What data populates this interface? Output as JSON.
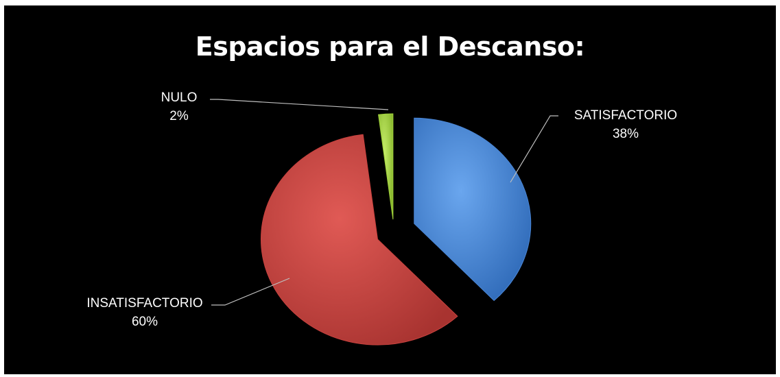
{
  "chart_data": {
    "type": "pie",
    "title": "Espacios para el Descanso:",
    "slices": [
      {
        "label": "SATISFACTORIO",
        "percent_label": "38%",
        "value": 38,
        "color": "#4a86d6"
      },
      {
        "label": "INSATISFACTORIO",
        "percent_label": "60%",
        "value": 60,
        "color": "#c9423f"
      },
      {
        "label": "NULO",
        "percent_label": "2%",
        "value": 2,
        "color": "#9fd13a"
      }
    ],
    "exploded": true,
    "background": "#000000",
    "legend": "none"
  }
}
